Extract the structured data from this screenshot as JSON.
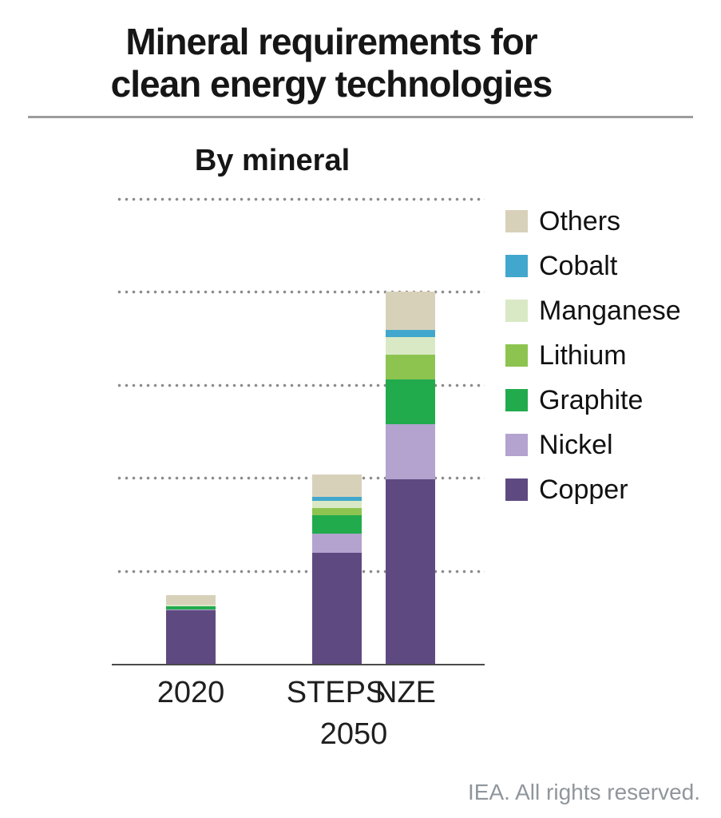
{
  "page": {
    "background": "#ffffff"
  },
  "header": {
    "title_line1": "Mineral requirements for",
    "title_line2": "clean energy technologies"
  },
  "chart_data": {
    "type": "bar",
    "stacked": true,
    "title": "By mineral",
    "categories": [
      "2020",
      "STEPS 2050",
      "NZE 2050"
    ],
    "x_ticks_row1": [
      "2020",
      "STEPS",
      "NZE"
    ],
    "x_ticks_row2": "2050",
    "series": [
      {
        "name": "Copper",
        "color": "#5e4a80",
        "values": [
          2.9,
          6.0,
          9.95
        ]
      },
      {
        "name": "Nickel",
        "color": "#b3a3ce",
        "values": [
          0.07,
          1.05,
          2.95
        ]
      },
      {
        "name": "Graphite",
        "color": "#21ab4d",
        "values": [
          0.15,
          0.95,
          2.4
        ]
      },
      {
        "name": "Lithium",
        "color": "#8dc450",
        "values": [
          0.03,
          0.4,
          1.35
        ]
      },
      {
        "name": "Manganese",
        "color": "#d9e9c5",
        "values": [
          0.06,
          0.4,
          0.95
        ]
      },
      {
        "name": "Cobalt",
        "color": "#42a7cc",
        "values": [
          0.02,
          0.2,
          0.35
        ]
      },
      {
        "name": "Others",
        "color": "#d8d1ba",
        "values": [
          0.5,
          1.2,
          2.1
        ]
      }
    ],
    "legend_order": [
      "Others",
      "Cobalt",
      "Manganese",
      "Lithium",
      "Graphite",
      "Nickel",
      "Copper"
    ],
    "legend_position": "right",
    "ylim": [
      0,
      25
    ],
    "gridline_step": 5,
    "grid": "dotted horizontal, no y-axis tick labels shown",
    "xlabel": "",
    "ylabel": ""
  },
  "colors": {
    "separator": "#9c9c9c",
    "axis": "#4a4a4a",
    "grid_dot": "#8c8c8c"
  },
  "footer": {
    "text": "IEA. All rights reserved."
  }
}
